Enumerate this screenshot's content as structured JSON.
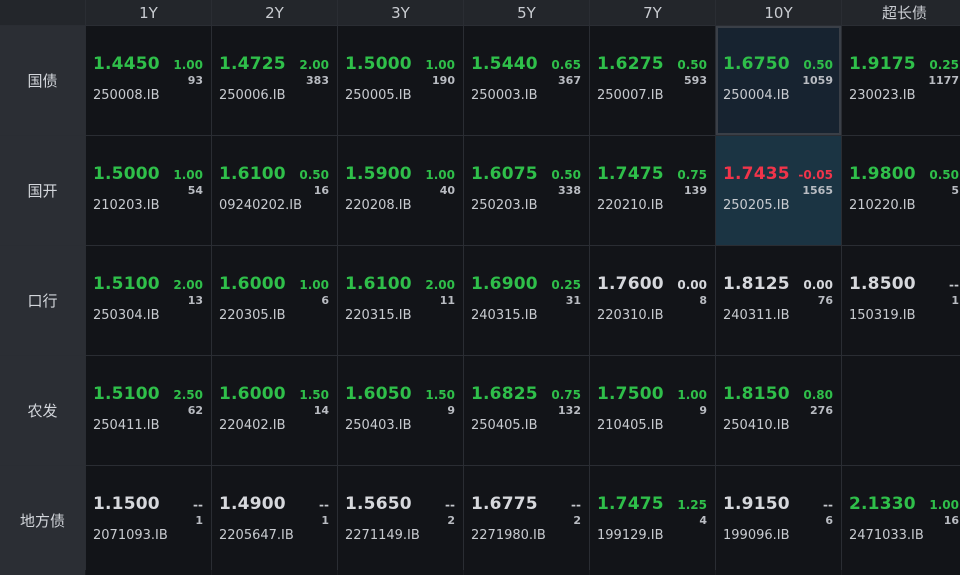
{
  "header": {
    "columns": [
      "1Y",
      "2Y",
      "3Y",
      "5Y",
      "7Y",
      "10Y",
      "超长债"
    ]
  },
  "colors": {
    "up": "#2fbf4a",
    "down": "#f0344a",
    "flat": "#d6d8dc"
  },
  "rows": [
    {
      "label": "国债",
      "cells": [
        {
          "rate": "1.4450",
          "chg": "1.00",
          "vol": "93",
          "code": "250008.IB",
          "dir": "up"
        },
        {
          "rate": "1.4725",
          "chg": "2.00",
          "vol": "383",
          "code": "250006.IB",
          "dir": "up"
        },
        {
          "rate": "1.5000",
          "chg": "1.00",
          "vol": "190",
          "code": "250005.IB",
          "dir": "up"
        },
        {
          "rate": "1.5440",
          "chg": "0.65",
          "vol": "367",
          "code": "250003.IB",
          "dir": "up"
        },
        {
          "rate": "1.6275",
          "chg": "0.50",
          "vol": "593",
          "code": "250007.IB",
          "dir": "up"
        },
        {
          "rate": "1.6750",
          "chg": "0.50",
          "vol": "1059",
          "code": "250004.IB",
          "dir": "up",
          "highlight": "dark"
        },
        {
          "rate": "1.9175",
          "chg": "0.25",
          "vol": "1177",
          "code": "230023.IB",
          "dir": "up"
        }
      ]
    },
    {
      "label": "国开",
      "cells": [
        {
          "rate": "1.5000",
          "chg": "1.00",
          "vol": "54",
          "code": "210203.IB",
          "dir": "up"
        },
        {
          "rate": "1.6100",
          "chg": "0.50",
          "vol": "16",
          "code": "09240202.IB",
          "dir": "up"
        },
        {
          "rate": "1.5900",
          "chg": "1.00",
          "vol": "40",
          "code": "220208.IB",
          "dir": "up"
        },
        {
          "rate": "1.6075",
          "chg": "0.50",
          "vol": "338",
          "code": "250203.IB",
          "dir": "up"
        },
        {
          "rate": "1.7475",
          "chg": "0.75",
          "vol": "139",
          "code": "220210.IB",
          "dir": "up"
        },
        {
          "rate": "1.7435",
          "chg": "-0.05",
          "vol": "1565",
          "code": "250205.IB",
          "dir": "down",
          "highlight": "teal"
        },
        {
          "rate": "1.9800",
          "chg": "0.50",
          "vol": "5",
          "code": "210220.IB",
          "dir": "up"
        }
      ]
    },
    {
      "label": "口行",
      "cells": [
        {
          "rate": "1.5100",
          "chg": "2.00",
          "vol": "13",
          "code": "250304.IB",
          "dir": "up"
        },
        {
          "rate": "1.6000",
          "chg": "1.00",
          "vol": "6",
          "code": "220305.IB",
          "dir": "up"
        },
        {
          "rate": "1.6100",
          "chg": "2.00",
          "vol": "11",
          "code": "220315.IB",
          "dir": "up"
        },
        {
          "rate": "1.6900",
          "chg": "0.25",
          "vol": "31",
          "code": "240315.IB",
          "dir": "up"
        },
        {
          "rate": "1.7600",
          "chg": "0.00",
          "vol": "8",
          "code": "220310.IB",
          "dir": "flat"
        },
        {
          "rate": "1.8125",
          "chg": "0.00",
          "vol": "76",
          "code": "240311.IB",
          "dir": "flat"
        },
        {
          "rate": "1.8500",
          "chg": "--",
          "vol": "1",
          "code": "150319.IB",
          "dir": "flat"
        }
      ]
    },
    {
      "label": "农发",
      "cells": [
        {
          "rate": "1.5100",
          "chg": "2.50",
          "vol": "62",
          "code": "250411.IB",
          "dir": "up"
        },
        {
          "rate": "1.6000",
          "chg": "1.50",
          "vol": "14",
          "code": "220402.IB",
          "dir": "up"
        },
        {
          "rate": "1.6050",
          "chg": "1.50",
          "vol": "9",
          "code": "250403.IB",
          "dir": "up"
        },
        {
          "rate": "1.6825",
          "chg": "0.75",
          "vol": "132",
          "code": "250405.IB",
          "dir": "up"
        },
        {
          "rate": "1.7500",
          "chg": "1.00",
          "vol": "9",
          "code": "210405.IB",
          "dir": "up"
        },
        {
          "rate": "1.8150",
          "chg": "0.80",
          "vol": "276",
          "code": "250410.IB",
          "dir": "up"
        },
        null
      ]
    },
    {
      "label": "地方债",
      "cells": [
        {
          "rate": "1.1500",
          "chg": "--",
          "vol": "1",
          "code": "2071093.IB",
          "dir": "flat"
        },
        {
          "rate": "1.4900",
          "chg": "--",
          "vol": "1",
          "code": "2205647.IB",
          "dir": "flat"
        },
        {
          "rate": "1.5650",
          "chg": "--",
          "vol": "2",
          "code": "2271149.IB",
          "dir": "flat"
        },
        {
          "rate": "1.6775",
          "chg": "--",
          "vol": "2",
          "code": "2271980.IB",
          "dir": "flat"
        },
        {
          "rate": "1.7475",
          "chg": "1.25",
          "vol": "4",
          "code": "199129.IB",
          "dir": "up"
        },
        {
          "rate": "1.9150",
          "chg": "--",
          "vol": "6",
          "code": "199096.IB",
          "dir": "flat"
        },
        {
          "rate": "2.1330",
          "chg": "1.00",
          "vol": "16",
          "code": "2471033.IB",
          "dir": "up"
        }
      ]
    }
  ]
}
